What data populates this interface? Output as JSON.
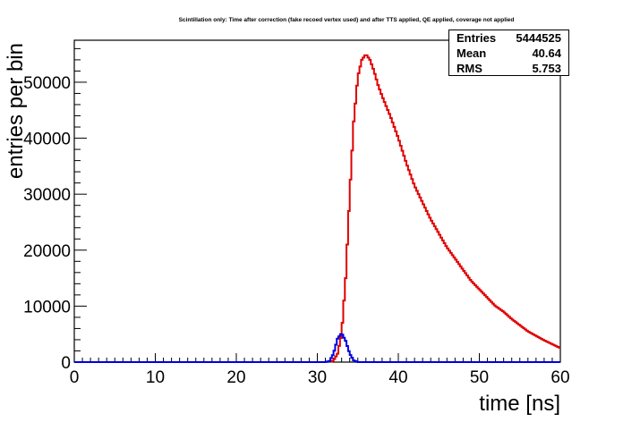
{
  "chart_data": {
    "type": "line",
    "title": "Scintillation only: Time after correction (fake recoed vertex used) and after TTS applied, QE applied, coverage not applied",
    "xlabel": "time [ns]",
    "ylabel": "entries per bin",
    "xlim": [
      0,
      60
    ],
    "ylim": [
      0,
      57500
    ],
    "x_ticks": [
      0,
      10,
      20,
      30,
      40,
      50,
      60
    ],
    "y_ticks": [
      0,
      10000,
      20000,
      30000,
      40000,
      50000
    ],
    "grid": false,
    "series": [
      {
        "color": "#e00000",
        "x": [
          31.6,
          32.0,
          32.5,
          33.0,
          33.5,
          34.0,
          34.5,
          35.0,
          35.5,
          36.0,
          36.5,
          37.0,
          37.5,
          38.0,
          39.0,
          40.0,
          41.0,
          42.0,
          43.0,
          44.0,
          45.0,
          46.0,
          47.0,
          48.0,
          49.0,
          50.0,
          51.0,
          52.0,
          53.0,
          54.0,
          55.0,
          56.0,
          57.0,
          58.0,
          59.0,
          60.0
        ],
        "y": [
          0,
          300,
          1500,
          5000,
          15000,
          30000,
          43000,
          51000,
          54000,
          55000,
          54000,
          52000,
          49500,
          47500,
          44000,
          40000,
          35500,
          31500,
          28500,
          25500,
          23000,
          20500,
          18500,
          16500,
          14500,
          13000,
          11500,
          10000,
          9000,
          7700,
          6600,
          5500,
          4700,
          3900,
          3200,
          2500
        ]
      },
      {
        "color": "#0000e0",
        "x": [
          0,
          31.0,
          31.5,
          32.0,
          32.5,
          33.0,
          33.5,
          34.0,
          34.5,
          35.0,
          60.0
        ],
        "y": [
          0,
          0,
          200,
          1500,
          4200,
          5200,
          3800,
          1500,
          300,
          0,
          0
        ]
      }
    ]
  },
  "stats_box": {
    "entries_label": "Entries",
    "entries_value": "5444525",
    "mean_label": "Mean",
    "mean_value": "40.64",
    "rms_label": "RMS",
    "rms_value": "5.753"
  }
}
